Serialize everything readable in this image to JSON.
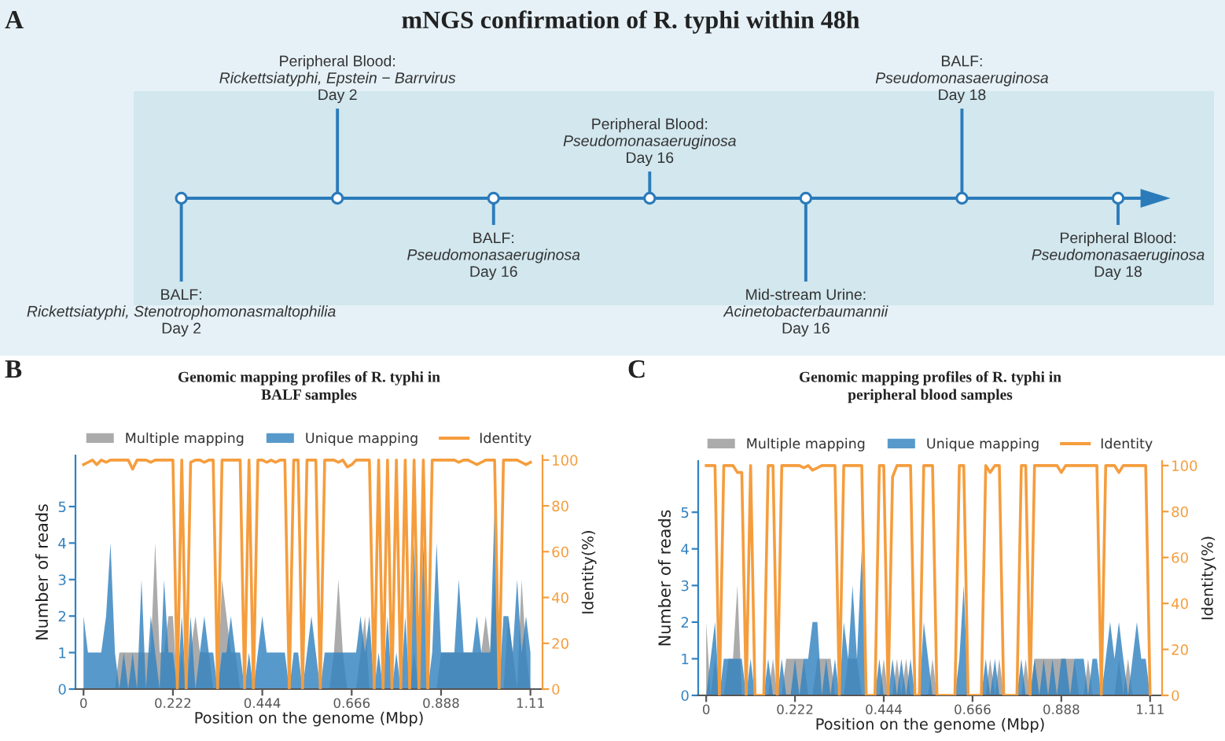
{
  "chart_data": [
    {
      "type": "other",
      "title": "mNGS confirmation of R. typhi within 48h",
      "annotations": [
        "A",
        "BALF:\nRickettsiatyphi, Stenotrophomonasmaltophilia\nDay 2",
        "Peripheral Blood:\nRickettsiatyphi, Epstein − Barrvirus\nDay 2",
        "BALF:\nPseudomonasaeruginosa\nDay 16",
        "Peripheral Blood:\nPseudomonasaeruginosa\nDay 16",
        "Mid-stream Urine:\nAcinetobacterbaumannii\nDay 16",
        "BALF:\nPseudomonasaeruginosa\nDay 18",
        "Peripheral Blood:\nPseudomonasaeruginosa\nDay 18"
      ]
    },
    {
      "type": "area",
      "title": "Genomic mapping profiles of R. typhi in\nBALF samples",
      "annotations": [
        "B"
      ],
      "xlabel": "Position on the genome (Mbp)",
      "ylabel": "Number of reads",
      "y2label": "Identity(%)",
      "legend": "top",
      "x": [
        0,
        0.011,
        0.022,
        0.033,
        0.044,
        0.056,
        0.067,
        0.078,
        0.089,
        0.1,
        0.111,
        0.122,
        0.133,
        0.144,
        0.155,
        0.167,
        0.178,
        0.189,
        0.2,
        0.211,
        0.222,
        0.233,
        0.244,
        0.255,
        0.266,
        0.278,
        0.289,
        0.3,
        0.311,
        0.322,
        0.333,
        0.344,
        0.355,
        0.366,
        0.377,
        0.389,
        0.4,
        0.411,
        0.422,
        0.433,
        0.444,
        0.455,
        0.466,
        0.477,
        0.488,
        0.5,
        0.511,
        0.522,
        0.533,
        0.544,
        0.555,
        0.566,
        0.577,
        0.588,
        0.599,
        0.611,
        0.622,
        0.633,
        0.644,
        0.655,
        0.666,
        0.677,
        0.688,
        0.699,
        0.71,
        0.722,
        0.733,
        0.744,
        0.755,
        0.766,
        0.777,
        0.788,
        0.799,
        0.81,
        0.821,
        0.833,
        0.844,
        0.855,
        0.866,
        0.877,
        0.888,
        0.899,
        0.91,
        0.921,
        0.932,
        0.944,
        0.955,
        0.966,
        0.977,
        0.988,
        0.999,
        1.01,
        1.021,
        1.032,
        1.043,
        1.055,
        1.066,
        1.077,
        1.088,
        1.099,
        1.11
      ],
      "series": [
        {
          "name": "Multiple mapping",
          "type": "area",
          "color": "#999999",
          "values": [
            0,
            0,
            0,
            0,
            0,
            0,
            0,
            0,
            1,
            1,
            1,
            1,
            1,
            1,
            1,
            1,
            4,
            1,
            1,
            2,
            2,
            0,
            1,
            0,
            1,
            2,
            1,
            1,
            1,
            0,
            0,
            3,
            2,
            1,
            1,
            0,
            0,
            0,
            0,
            0,
            0,
            0,
            0,
            0,
            0,
            0,
            0,
            0,
            0,
            0,
            0,
            0,
            0,
            0,
            0,
            0,
            1,
            3,
            1,
            0,
            0,
            0,
            1,
            2,
            0,
            0,
            0,
            0,
            0,
            0,
            0,
            0,
            0,
            0,
            1,
            0,
            0,
            0,
            0,
            0,
            1,
            1,
            1,
            1,
            1,
            1,
            1,
            1,
            1,
            1,
            2,
            1,
            3,
            0,
            0,
            2,
            1,
            0,
            3,
            1,
            0
          ]
        },
        {
          "name": "Unique mapping",
          "type": "area",
          "color": "#3382c0",
          "values": [
            2,
            1,
            1,
            1,
            1,
            2,
            4,
            1,
            0,
            1,
            0,
            1,
            0,
            3,
            0,
            2,
            1,
            0,
            3,
            1,
            1,
            0,
            2,
            0,
            2,
            0,
            1,
            2,
            1,
            1,
            0,
            1,
            1,
            2,
            1,
            1,
            0,
            1,
            0,
            1,
            2,
            1,
            1,
            1,
            1,
            1,
            0,
            1,
            1,
            0,
            1,
            2,
            1,
            0,
            1,
            1,
            1,
            1,
            1,
            1,
            1,
            1,
            2,
            1,
            2,
            0,
            1,
            0,
            2,
            0,
            1,
            0,
            2,
            0,
            4,
            0,
            4,
            0,
            1,
            4,
            1,
            1,
            1,
            1,
            3,
            1,
            1,
            1,
            2,
            1,
            1,
            1,
            5,
            0,
            2,
            2,
            1,
            3,
            1,
            2,
            1
          ]
        },
        {
          "name": "Identity",
          "type": "line",
          "axis": "y2",
          "color": "#f59d3d",
          "values": [
            98,
            99,
            100,
            98,
            100,
            99,
            100,
            100,
            100,
            100,
            100,
            96,
            100,
            100,
            100,
            99,
            100,
            100,
            100,
            100,
            100,
            0,
            100,
            0,
            99,
            100,
            100,
            99,
            100,
            100,
            0,
            100,
            100,
            100,
            100,
            100,
            0,
            100,
            0,
            100,
            100,
            99,
            100,
            99,
            100,
            100,
            0,
            100,
            100,
            0,
            100,
            100,
            100,
            0,
            100,
            100,
            100,
            99,
            100,
            97,
            98,
            100,
            100,
            100,
            100,
            0,
            100,
            0,
            100,
            0,
            100,
            0,
            100,
            0,
            100,
            0,
            100,
            0,
            100,
            100,
            100,
            100,
            100,
            100,
            99,
            100,
            100,
            99,
            98,
            99,
            100,
            100,
            100,
            0,
            100,
            100,
            100,
            100,
            99,
            98,
            99
          ]
        }
      ],
      "xlim": [
        -0.02,
        1.14
      ],
      "xticks": [
        0,
        0.222,
        0.444,
        0.666,
        0.888,
        1.11
      ],
      "ylim": [
        0,
        6.4
      ],
      "yticks": [
        0,
        1,
        2,
        3,
        4,
        5
      ],
      "y2lim": [
        0,
        102
      ],
      "y2ticks": [
        0,
        20,
        40,
        60,
        80,
        100
      ]
    },
    {
      "type": "area",
      "title": "Genomic mapping profiles of R. typhi in\nperipheral blood samples",
      "annotations": [
        "C"
      ],
      "xlabel": "Position on the genome (Mbp)",
      "ylabel": "Number of reads",
      "y2label": "Identity(%)",
      "legend": "top",
      "x": [
        0,
        0.011,
        0.022,
        0.033,
        0.044,
        0.056,
        0.067,
        0.078,
        0.089,
        0.1,
        0.111,
        0.122,
        0.133,
        0.144,
        0.155,
        0.167,
        0.178,
        0.189,
        0.2,
        0.211,
        0.222,
        0.233,
        0.244,
        0.255,
        0.266,
        0.278,
        0.289,
        0.3,
        0.311,
        0.322,
        0.333,
        0.344,
        0.355,
        0.366,
        0.377,
        0.389,
        0.4,
        0.411,
        0.422,
        0.433,
        0.444,
        0.455,
        0.466,
        0.477,
        0.488,
        0.5,
        0.511,
        0.522,
        0.533,
        0.544,
        0.555,
        0.566,
        0.577,
        0.588,
        0.599,
        0.611,
        0.622,
        0.633,
        0.644,
        0.655,
        0.666,
        0.677,
        0.688,
        0.699,
        0.71,
        0.722,
        0.733,
        0.744,
        0.755,
        0.766,
        0.777,
        0.788,
        0.799,
        0.81,
        0.821,
        0.833,
        0.844,
        0.855,
        0.866,
        0.877,
        0.888,
        0.899,
        0.91,
        0.921,
        0.932,
        0.944,
        0.955,
        0.966,
        0.977,
        0.988,
        0.999,
        1.01,
        1.021,
        1.032,
        1.043,
        1.055,
        1.066,
        1.077,
        1.088,
        1.099,
        1.11
      ],
      "series": [
        {
          "name": "Multiple mapping",
          "type": "area",
          "color": "#999999",
          "values": [
            2,
            0,
            1,
            0,
            0,
            1,
            1,
            3,
            0,
            0,
            0,
            0,
            0,
            0,
            0,
            1,
            0,
            0,
            1,
            1,
            1,
            1,
            1,
            0,
            0,
            1,
            1,
            1,
            1,
            0,
            0,
            0,
            1,
            1,
            1,
            0,
            0,
            0,
            0,
            0,
            1,
            0,
            0,
            1,
            0,
            1,
            0,
            0,
            0,
            0,
            0,
            1,
            0,
            0,
            0,
            0,
            0,
            0,
            0,
            0,
            0,
            0,
            0,
            0,
            1,
            0,
            1,
            0,
            0,
            0,
            0,
            0,
            1,
            0,
            1,
            1,
            1,
            1,
            1,
            1,
            1,
            1,
            1,
            1,
            0,
            0,
            1,
            0,
            0,
            0,
            0,
            0,
            0,
            1,
            0,
            1,
            0,
            0,
            0,
            0,
            0
          ]
        },
        {
          "name": "Unique mapping",
          "type": "area",
          "color": "#3382c0",
          "values": [
            0,
            1,
            2,
            0,
            1,
            1,
            1,
            1,
            1,
            0,
            1,
            0,
            0,
            0,
            1,
            0,
            0,
            1,
            0,
            0,
            1,
            0,
            1,
            1,
            2,
            2,
            0,
            1,
            0,
            1,
            0,
            2,
            1,
            3,
            1,
            4,
            0,
            0,
            0,
            1,
            0,
            0,
            1,
            0,
            1,
            0,
            1,
            0,
            0,
            2,
            1,
            0,
            0,
            0,
            0,
            0,
            0,
            1,
            3,
            0,
            0,
            0,
            0,
            1,
            0,
            1,
            0,
            0,
            0,
            0,
            0,
            1,
            0,
            0,
            1,
            0,
            1,
            0,
            1,
            0,
            1,
            1,
            0,
            1,
            1,
            1,
            0,
            1,
            1,
            0,
            1,
            2,
            1,
            2,
            1,
            0,
            1,
            2,
            1,
            1,
            0
          ]
        },
        {
          "name": "Identity",
          "type": "line",
          "axis": "y2",
          "color": "#f59d3d",
          "values": [
            100,
            100,
            100,
            0,
            100,
            100,
            100,
            97,
            97,
            0,
            100,
            0,
            0,
            0,
            100,
            100,
            0,
            100,
            100,
            100,
            100,
            100,
            99,
            100,
            98,
            99,
            100,
            100,
            100,
            100,
            0,
            100,
            100,
            100,
            100,
            100,
            0,
            0,
            0,
            100,
            100,
            0,
            95,
            100,
            100,
            100,
            100,
            0,
            0,
            100,
            100,
            100,
            0,
            0,
            0,
            0,
            0,
            100,
            100,
            0,
            0,
            0,
            0,
            100,
            97,
            100,
            100,
            0,
            0,
            0,
            0,
            100,
            100,
            0,
            100,
            100,
            100,
            100,
            100,
            100,
            97,
            100,
            100,
            100,
            100,
            100,
            100,
            100,
            100,
            0,
            100,
            100,
            100,
            97,
            100,
            100,
            100,
            100,
            100,
            100,
            0
          ]
        }
      ],
      "xlim": [
        -0.02,
        1.14
      ],
      "xticks": [
        0,
        0.222,
        0.444,
        0.666,
        0.888,
        1.11
      ],
      "ylim": [
        0,
        6.4
      ],
      "yticks": [
        0,
        1,
        2,
        3,
        4,
        5
      ],
      "y2lim": [
        0,
        102
      ],
      "y2ticks": [
        0,
        20,
        40,
        60,
        80,
        100
      ]
    }
  ]
}
